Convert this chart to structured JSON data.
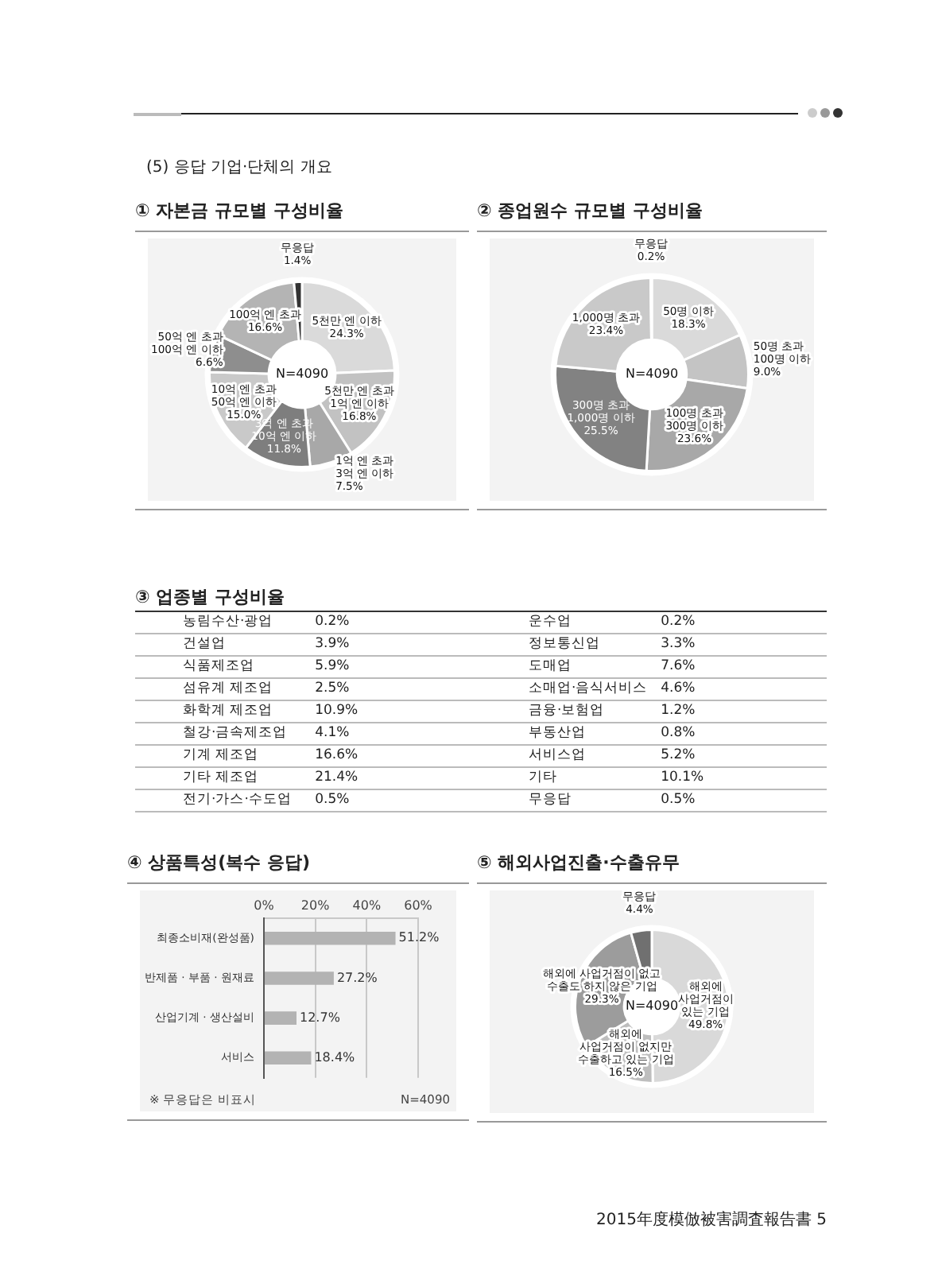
{
  "chart_data": [
    {
      "type": "donut",
      "subtitle": "(5) 응답 기업·단체의 개요",
      "title": "① 자본금 규모별 구성비율",
      "categories": [
        "5천만 엔 이하",
        "5천만 엔 초과\n1억 엔 이하",
        "1억 엔 초과\n3억 엔 이하",
        "3억 엔 초과\n10억 엔 이하",
        "10억 엔 초과\n50억 엔 이하",
        "50억 엔 초과\n100억 엔 이하",
        "100억 엔 초과",
        "무응답"
      ],
      "values": [
        24.3,
        16.8,
        7.5,
        11.8,
        15.0,
        6.6,
        16.6,
        1.4
      ],
      "value_labels": [
        "24.3%",
        "16.8%",
        "7.5%",
        "11.8%",
        "15.0%",
        "6.6%",
        "16.6%",
        "1.4%"
      ],
      "colors": [
        "#dadada",
        "#c2c2c2",
        "#a8a8a8",
        "#7e7e7e",
        "#c9c9c9",
        "#8e8e8e",
        "#b4b4b4",
        "#333333"
      ],
      "annotations": [
        "N=4090"
      ]
    },
    {
      "type": "donut",
      "title": "② 종업원수 규모별 구성비율",
      "categories": [
        "50명 이하",
        "50명 초과\n100명 이하",
        "100명 초과\n300명 이하",
        "300명 초과\n1,000명 이하",
        "1,000명 초과",
        "무응답"
      ],
      "values": [
        18.3,
        9.0,
        23.6,
        25.5,
        23.4,
        0.2
      ],
      "value_labels": [
        "18.3%",
        "9.0%",
        "23.6%",
        "25.5%",
        "23.4%",
        "0.2%"
      ],
      "colors": [
        "#dadada",
        "#c4c4c4",
        "#a8a8a8",
        "#828282",
        "#c9c9c9",
        "#e6e6e6"
      ],
      "annotations": [
        "N=4090"
      ]
    },
    {
      "type": "other",
      "title": "③ 업종별 구성비율",
      "annotations": [
        "농림수산·광업",
        "0.2%",
        "운수업",
        "0.2%",
        "건설업",
        "3.9%",
        "정보통신업",
        "3.3%",
        "식품제조업",
        "5.9%",
        "도매업",
        "7.6%",
        "섬유계 제조업",
        "2.5%",
        "소매업·음식서비스",
        "4.6%",
        "화학계 제조업",
        "10.9%",
        "금융·보험업",
        "1.2%",
        "철강·금속제조업",
        "4.1%",
        "부동산업",
        "0.8%",
        "기계 제조업",
        "16.6%",
        "서비스업",
        "5.2%",
        "기타 제조업",
        "21.4%",
        "기타",
        "10.1%",
        "전기·가스·수도업",
        "0.5%",
        "무응답",
        "0.5%"
      ]
    },
    {
      "type": "bar",
      "orientation": "horizontal",
      "title": "④ 상품특성(복수 응답)",
      "categories": [
        "최종소비재(완성품)",
        "반제품 · 부품 · 원재료",
        "산업기계 · 생산설비",
        "서비스"
      ],
      "values": [
        51.2,
        27.2,
        12.7,
        18.4
      ],
      "color": "#b3b3b3",
      "value_labels": [
        "51.2%",
        "27.2%",
        "12.7%",
        "18.4%"
      ],
      "xlim": [
        0,
        60
      ],
      "xticks": [
        {
          "value": 0,
          "label": "0%"
        },
        {
          "value": 20,
          "label": "20%"
        },
        {
          "value": 40,
          "label": "40%"
        },
        {
          "value": 60,
          "label": "60%"
        }
      ],
      "grid": "x",
      "annotations": [
        "※ 무응답은 비표시",
        "N=4090"
      ]
    },
    {
      "type": "donut",
      "title": "⑤ 해외사업진출·수출유무",
      "categories": [
        "해외에\n사업거점이\n있는 기업",
        "해외에\n사업거점이 없지만\n수출하고 있는 기업",
        "해외에 사업거점이 없고\n수출도 하지 않은 기업",
        "무응답"
      ],
      "values": [
        49.8,
        16.5,
        29.3,
        4.4
      ],
      "value_labels": [
        "49.8%",
        "16.5%",
        "29.3%",
        "4.4%"
      ],
      "colors": [
        "#d9d9d9",
        "#bebebe",
        "#9c9c9c",
        "#707070"
      ],
      "annotations": [
        "N=4090",
        "2015年度模倣被害調査報告書 5"
      ]
    }
  ]
}
